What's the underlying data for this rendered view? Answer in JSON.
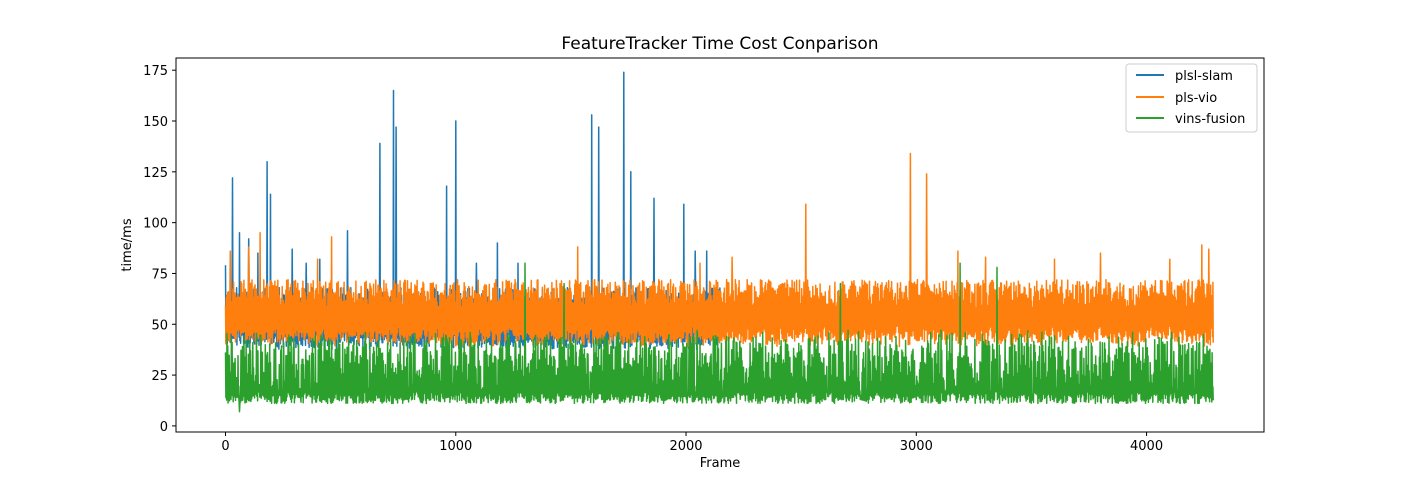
{
  "chart_data": {
    "type": "line",
    "title": "FeatureTracker Time Cost Conparison",
    "xlabel": "Frame",
    "ylabel": "time/ms",
    "xlim": [
      -215,
      4510
    ],
    "ylim": [
      -3,
      181
    ],
    "xticks": [
      0,
      1000,
      2000,
      3000,
      4000
    ],
    "yticks": [
      0,
      25,
      50,
      75,
      100,
      125,
      150,
      175
    ],
    "grid": false,
    "legend_position": "upper right",
    "series": [
      {
        "name": "plsl-slam",
        "color": "#1f77b4",
        "x_range": [
          0,
          2150
        ],
        "baseline": 48,
        "spread": 20,
        "spikes": [
          [
            0,
            79
          ],
          [
            30,
            122
          ],
          [
            60,
            95
          ],
          [
            100,
            92
          ],
          [
            140,
            85
          ],
          [
            180,
            130
          ],
          [
            195,
            114
          ],
          [
            290,
            87
          ],
          [
            350,
            80
          ],
          [
            410,
            82
          ],
          [
            530,
            96
          ],
          [
            670,
            139
          ],
          [
            730,
            165
          ],
          [
            740,
            147
          ],
          [
            960,
            118
          ],
          [
            1000,
            150
          ],
          [
            1090,
            80
          ],
          [
            1180,
            90
          ],
          [
            1270,
            80
          ],
          [
            1590,
            153
          ],
          [
            1620,
            147
          ],
          [
            1730,
            174
          ],
          [
            1760,
            125
          ],
          [
            1860,
            112
          ],
          [
            1990,
            109
          ],
          [
            2040,
            86
          ],
          [
            2090,
            86
          ]
        ]
      },
      {
        "name": "pls-vio",
        "color": "#ff7f0e",
        "x_range": [
          0,
          4290
        ],
        "baseline": 50,
        "spread": 22,
        "spikes": [
          [
            20,
            86
          ],
          [
            100,
            88
          ],
          [
            150,
            95
          ],
          [
            400,
            82
          ],
          [
            460,
            93
          ],
          [
            1530,
            88
          ],
          [
            2060,
            80
          ],
          [
            2200,
            83
          ],
          [
            2520,
            109
          ],
          [
            2975,
            134
          ],
          [
            3045,
            124
          ],
          [
            3180,
            86
          ],
          [
            3300,
            83
          ],
          [
            3600,
            82
          ],
          [
            3800,
            85
          ],
          [
            4100,
            82
          ],
          [
            4240,
            89
          ],
          [
            4270,
            87
          ]
        ]
      },
      {
        "name": "vins-fusion",
        "color": "#2ca02c",
        "x_range": [
          0,
          4290
        ],
        "baseline": 12,
        "spread": 38,
        "spikes": [
          [
            60,
            7
          ],
          [
            1300,
            80
          ],
          [
            1470,
            70
          ],
          [
            2670,
            70
          ],
          [
            3190,
            80
          ],
          [
            3350,
            78
          ],
          [
            3410,
            78
          ],
          [
            3205,
            17
          ],
          [
            3410,
            17
          ]
        ]
      }
    ]
  }
}
